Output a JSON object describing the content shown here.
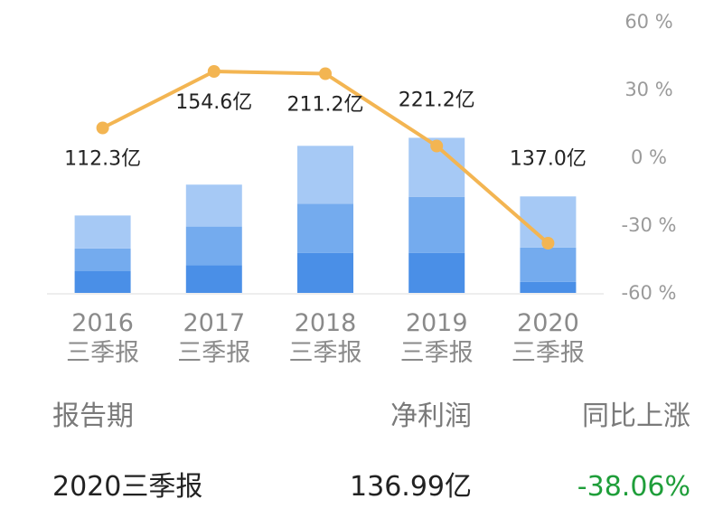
{
  "chart_data": {
    "type": "bar",
    "categories": [
      [
        "2016",
        "三季报"
      ],
      [
        "2017",
        "三季报"
      ],
      [
        "2018",
        "三季报"
      ],
      [
        "2019",
        "三季报"
      ],
      [
        "2020",
        "三季报"
      ]
    ],
    "series": [
      {
        "name": "",
        "values": [
          20.8,
          26.5,
          38.4,
          38.4,
          10.5
        ],
        "color": "#4a8fe7"
      },
      {
        "name": "",
        "values": [
          21.8,
          37.1,
          47.1,
          53.7,
          33.0
        ],
        "color": "#74abee"
      },
      {
        "name": "",
        "values": [
          31.6,
          40.2,
          55.5,
          56.6,
          49.0
        ],
        "color": "#a6c9f5"
      }
    ],
    "bar_labels": [
      "112.3亿",
      "154.6亿",
      "211.2亿",
      "221.2亿",
      "137.0亿"
    ],
    "line": {
      "name": "",
      "values": [
        13,
        38,
        37,
        5,
        -38
      ],
      "color": "#f3b552"
    },
    "y_right": {
      "ticks": [
        "60 %",
        "30 %",
        "0 %",
        "-30 %",
        "-60 %"
      ],
      "range": [
        -60,
        60
      ]
    },
    "y_left_range": [
      0,
      260
    ],
    "grid": false,
    "legend": "none"
  },
  "summary": {
    "headers": [
      "报告期",
      "净利润",
      "同比上涨"
    ],
    "row": {
      "period": "2020三季报",
      "profit": "136.99亿",
      "change": "-38.06%",
      "change_color": "#1f9e3a"
    }
  }
}
